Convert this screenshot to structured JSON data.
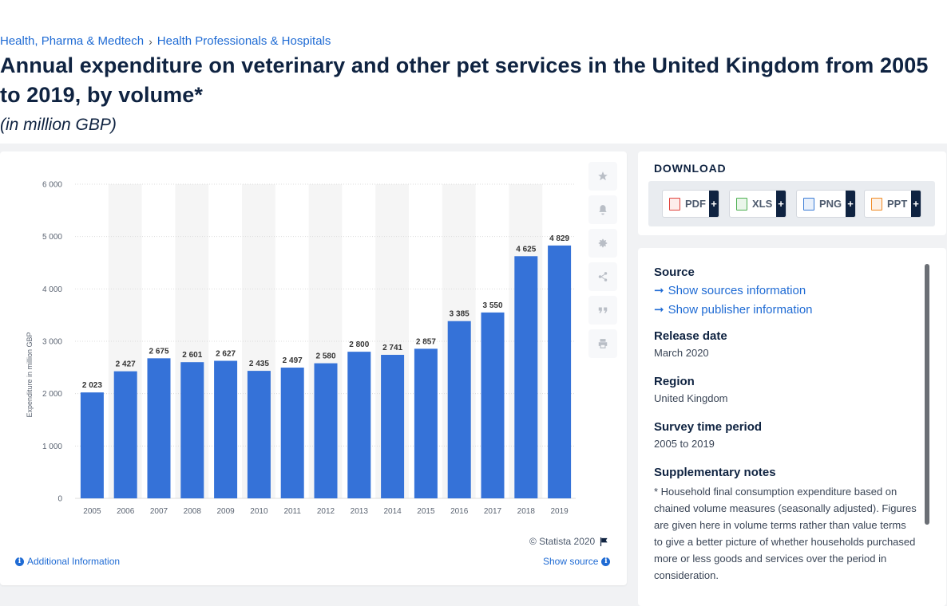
{
  "breadcrumb": {
    "items": [
      "Health, Pharma & Medtech",
      "Health Professionals & Hospitals"
    ],
    "separator": "›"
  },
  "title": "Annual expenditure on veterinary and other pet services in the United Kingdom from 2005 to 2019, by volume*",
  "subtitle": "(in million GBP)",
  "toolbar": {
    "icons": [
      "star-icon",
      "bell-icon",
      "gear-icon",
      "share-icon",
      "quote-icon",
      "print-icon"
    ]
  },
  "footer": {
    "copyright": "© Statista 2020",
    "additional_info": "Additional Information",
    "show_source": "Show source"
  },
  "download": {
    "title": "DOWNLOAD",
    "buttons": [
      {
        "label": "PDF",
        "color": "#e0413b"
      },
      {
        "label": "XLS",
        "color": "#4caf50"
      },
      {
        "label": "PNG",
        "color": "#3a7bd5"
      },
      {
        "label": "PPT",
        "color": "#f08a24"
      }
    ],
    "plus": "+"
  },
  "info": {
    "source_label": "Source",
    "show_sources": "Show sources information",
    "show_publisher": "Show publisher information",
    "release_label": "Release date",
    "release_value": "March 2020",
    "region_label": "Region",
    "region_value": "United Kingdom",
    "survey_label": "Survey time period",
    "survey_value": "2005 to 2019",
    "notes_label": "Supplementary notes",
    "notes_value": "* Household final consumption expenditure based on chained volume measures (seasonally adjusted). Figures are given here in volume terms rather than value terms to give a better picture of whether households purchased more or less goods and services over the period in consideration."
  },
  "colors": {
    "bar": "#3572d8",
    "band": "#f5f5f5",
    "grid": "#dcdcdc",
    "link": "#1f6bd4",
    "text": "#0f2341"
  },
  "chart_data": {
    "type": "bar",
    "categories": [
      "2005",
      "2006",
      "2007",
      "2008",
      "2009",
      "2010",
      "2011",
      "2012",
      "2013",
      "2014",
      "2015",
      "2016",
      "2017",
      "2018",
      "2019"
    ],
    "values": [
      2023,
      2427,
      2675,
      2601,
      2627,
      2435,
      2497,
      2580,
      2800,
      2741,
      2857,
      3385,
      3550,
      4625,
      4829
    ],
    "value_labels": [
      "2 023",
      "2 427",
      "2 675",
      "2 601",
      "2 627",
      "2 435",
      "2 497",
      "2 580",
      "2 800",
      "2 741",
      "2 857",
      "3 385",
      "3 550",
      "4 625",
      "4 829"
    ],
    "ylabel": "Expenditure in million GBP",
    "xlabel": "",
    "ylim": [
      0,
      6000
    ],
    "yticks": [
      0,
      1000,
      2000,
      3000,
      4000,
      5000,
      6000
    ],
    "ytick_labels": [
      "0",
      "1 000",
      "2 000",
      "3 000",
      "4 000",
      "5 000",
      "6 000"
    ],
    "grid": true,
    "legend": "none"
  }
}
